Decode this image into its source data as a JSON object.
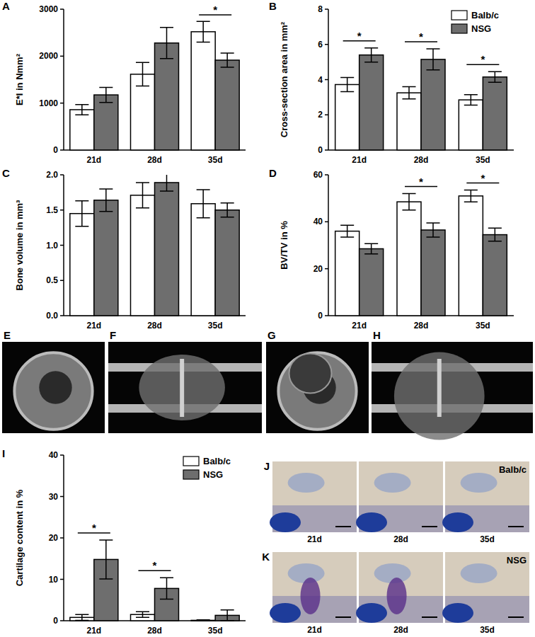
{
  "chart_data": [
    {
      "type": "bar",
      "panel": "A",
      "y_label": "E*I in Nmm²",
      "categories": [
        "21d",
        "28d",
        "35d"
      ],
      "series": [
        {
          "name": "Balb/c",
          "color": "#ffffff",
          "values": [
            860,
            1615,
            2520
          ],
          "errors": [
            110,
            250,
            220
          ]
        },
        {
          "name": "NSG",
          "color": "#6e6e6e",
          "values": [
            1175,
            2280,
            1915
          ],
          "errors": [
            160,
            330,
            150
          ]
        }
      ],
      "ylim": [
        0,
        3000
      ],
      "yticks": [
        0,
        1000,
        2000,
        3000
      ],
      "annotations": [
        {
          "category": "35d",
          "text": "*"
        }
      ]
    },
    {
      "type": "bar",
      "panel": "B",
      "y_label": "Cross-section area in mm²",
      "categories": [
        "21d",
        "28d",
        "35d"
      ],
      "series": [
        {
          "name": "Balb/c",
          "color": "#ffffff",
          "values": [
            3.72,
            3.25,
            2.85
          ],
          "errors": [
            0.4,
            0.35,
            0.3
          ]
        },
        {
          "name": "NSG",
          "color": "#6e6e6e",
          "values": [
            5.4,
            5.15,
            4.15
          ],
          "errors": [
            0.4,
            0.6,
            0.3
          ]
        }
      ],
      "ylim": [
        0,
        8
      ],
      "yticks": [
        0,
        2,
        4,
        6,
        8
      ],
      "legend": "top-right",
      "annotations": [
        {
          "category": "21d",
          "text": "*"
        },
        {
          "category": "28d",
          "text": "*"
        },
        {
          "category": "35d",
          "text": "*"
        }
      ]
    },
    {
      "type": "bar",
      "panel": "C",
      "y_label": "Bone volume in mm³",
      "categories": [
        "21d",
        "28d",
        "35d"
      ],
      "series": [
        {
          "name": "Balb/c",
          "color": "#ffffff",
          "values": [
            1.45,
            1.71,
            1.59
          ],
          "errors": [
            0.18,
            0.18,
            0.2
          ]
        },
        {
          "name": "NSG",
          "color": "#6e6e6e",
          "values": [
            1.64,
            1.89,
            1.5
          ],
          "errors": [
            0.16,
            0.12,
            0.1
          ]
        }
      ],
      "ylim": [
        0,
        2
      ],
      "yticks": [
        {
          "value": 0,
          "label": "0.0"
        },
        {
          "value": 0.5,
          "label": "0.5"
        },
        {
          "value": 1,
          "label": "1.0"
        },
        {
          "value": 1.5,
          "label": "1.5"
        },
        {
          "value": 2,
          "label": "2.0"
        }
      ]
    },
    {
      "type": "bar",
      "panel": "D",
      "y_label": "BV/TV in %",
      "categories": [
        "21d",
        "28d",
        "35d"
      ],
      "series": [
        {
          "name": "Balb/c",
          "color": "#ffffff",
          "values": [
            36,
            48.5,
            51
          ],
          "errors": [
            2.5,
            3.5,
            2.5
          ]
        },
        {
          "name": "NSG",
          "color": "#6e6e6e",
          "values": [
            28.5,
            36.5,
            34.5
          ],
          "errors": [
            2.2,
            3,
            2.8
          ]
        }
      ],
      "ylim": [
        0,
        60
      ],
      "yticks": [
        0,
        20,
        40,
        60
      ],
      "annotations": [
        {
          "category": "28d",
          "text": "*"
        },
        {
          "category": "35d",
          "text": "*"
        }
      ]
    },
    {
      "type": "bar",
      "panel": "I",
      "y_label": "Cartilage content in %",
      "categories": [
        "21d",
        "28d",
        "35d"
      ],
      "series": [
        {
          "name": "Balb/c",
          "color": "#ffffff",
          "values": [
            0.8,
            1.5,
            0.1
          ],
          "errors": [
            0.7,
            0.7,
            0.1
          ]
        },
        {
          "name": "NSG",
          "color": "#6e6e6e",
          "values": [
            14.8,
            7.8,
            1.3
          ],
          "errors": [
            4.7,
            2.6,
            1.3
          ]
        }
      ],
      "ylim": [
        0,
        40
      ],
      "yticks": [
        0,
        10,
        20,
        30,
        40
      ],
      "legend": "top-right",
      "annotations": [
        {
          "category": "21d",
          "text": "*"
        },
        {
          "category": "28d",
          "text": "*"
        }
      ]
    }
  ],
  "image_panels": [
    {
      "label": "E"
    },
    {
      "label": "F"
    },
    {
      "label": "G"
    },
    {
      "label": "H"
    }
  ],
  "histology": {
    "rows": [
      {
        "panel": "J",
        "name": "Balb/c",
        "days": [
          "21d",
          "28d",
          "35d"
        ]
      },
      {
        "panel": "K",
        "name": "NSG",
        "days": [
          "21d",
          "28d",
          "35d"
        ]
      }
    ]
  }
}
